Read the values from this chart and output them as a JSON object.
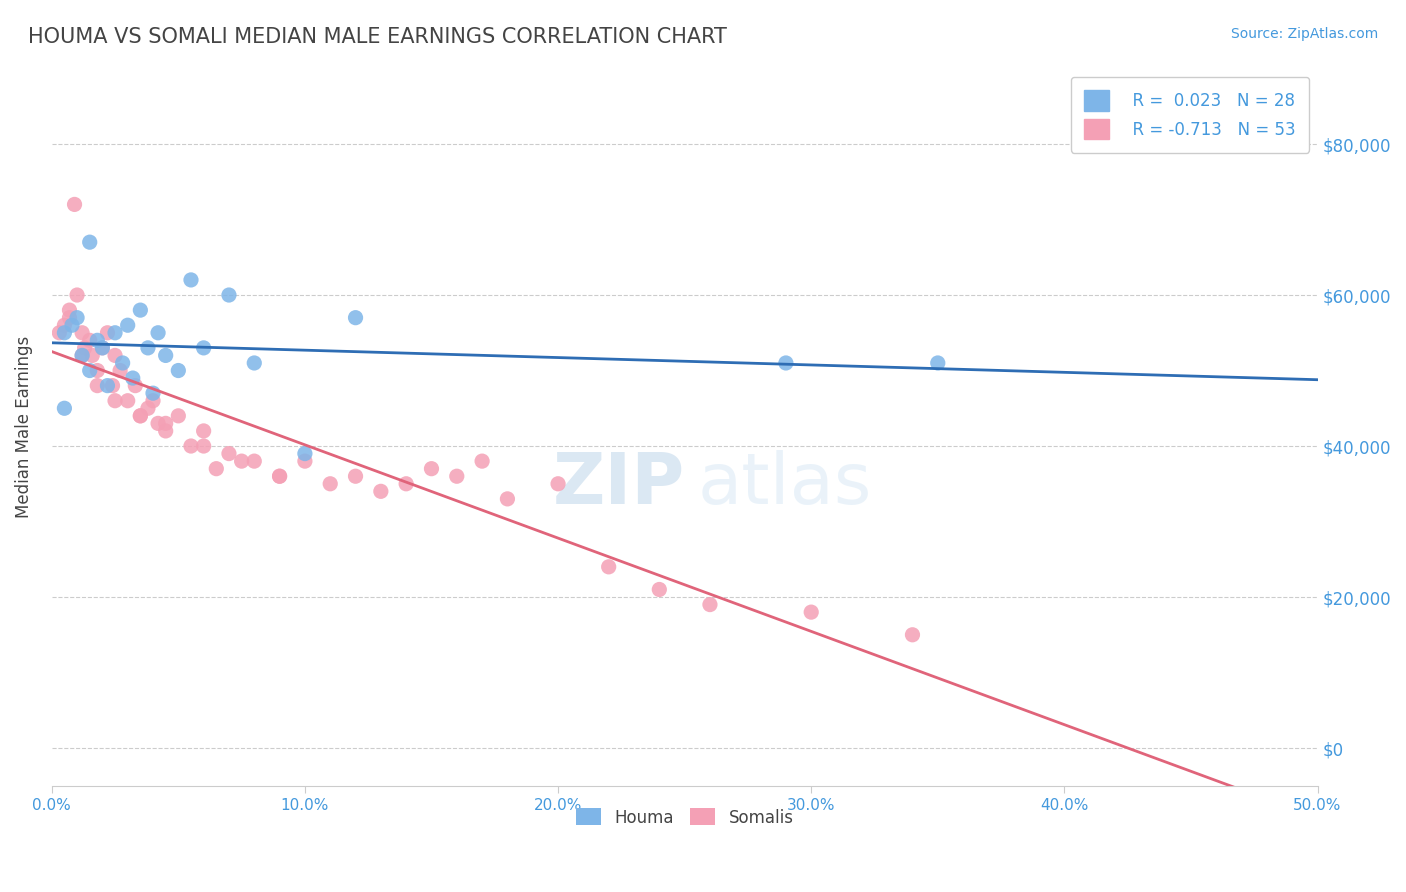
{
  "title": "HOUMA VS SOMALI MEDIAN MALE EARNINGS CORRELATION CHART",
  "source_text": "Source: ZipAtlas.com",
  "ylabel": "Median Male Earnings",
  "xlim": [
    0.0,
    0.5
  ],
  "ylim": [
    -5000,
    90000
  ],
  "yticks": [
    0,
    20000,
    40000,
    60000,
    80000
  ],
  "xticks": [
    0.0,
    0.1,
    0.2,
    0.3,
    0.4,
    0.5
  ],
  "xtick_labels": [
    "0.0%",
    "10.0%",
    "20.0%",
    "30.0%",
    "40.0%",
    "50.0%"
  ],
  "houma_color": "#7EB5E8",
  "somali_color": "#F4A0B5",
  "houma_line_color": "#2E6DB4",
  "somali_line_color": "#E0647A",
  "houma_R": 0.023,
  "houma_N": 28,
  "somali_R": -0.713,
  "somali_N": 53,
  "background_color": "#FFFFFF",
  "grid_color": "#CCCCCC",
  "axis_label_color": "#4499DD",
  "title_color": "#444444",
  "watermark_zip": "ZIP",
  "watermark_atlas": "atlas",
  "houma_x": [
    0.005,
    0.008,
    0.01,
    0.012,
    0.015,
    0.018,
    0.02,
    0.022,
    0.025,
    0.028,
    0.03,
    0.032,
    0.035,
    0.038,
    0.04,
    0.042,
    0.045,
    0.05,
    0.055,
    0.06,
    0.07,
    0.08,
    0.1,
    0.12,
    0.29,
    0.35,
    0.005,
    0.015
  ],
  "houma_y": [
    55000,
    56000,
    57000,
    52000,
    50000,
    54000,
    53000,
    48000,
    55000,
    51000,
    56000,
    49000,
    58000,
    53000,
    47000,
    55000,
    52000,
    50000,
    62000,
    53000,
    60000,
    51000,
    39000,
    57000,
    51000,
    51000,
    45000,
    67000
  ],
  "somali_x": [
    0.003,
    0.005,
    0.007,
    0.009,
    0.01,
    0.012,
    0.013,
    0.015,
    0.016,
    0.018,
    0.02,
    0.022,
    0.024,
    0.025,
    0.027,
    0.03,
    0.033,
    0.035,
    0.038,
    0.04,
    0.042,
    0.045,
    0.05,
    0.055,
    0.06,
    0.065,
    0.07,
    0.08,
    0.09,
    0.1,
    0.11,
    0.12,
    0.13,
    0.14,
    0.15,
    0.16,
    0.17,
    0.18,
    0.2,
    0.22,
    0.24,
    0.26,
    0.007,
    0.012,
    0.018,
    0.025,
    0.035,
    0.045,
    0.06,
    0.075,
    0.09,
    0.3,
    0.34
  ],
  "somali_y": [
    55000,
    56000,
    57000,
    72000,
    60000,
    55000,
    53000,
    54000,
    52000,
    50000,
    53000,
    55000,
    48000,
    52000,
    50000,
    46000,
    48000,
    44000,
    45000,
    46000,
    43000,
    42000,
    44000,
    40000,
    42000,
    37000,
    39000,
    38000,
    36000,
    38000,
    35000,
    36000,
    34000,
    35000,
    37000,
    36000,
    38000,
    33000,
    35000,
    24000,
    21000,
    19000,
    58000,
    52000,
    48000,
    46000,
    44000,
    43000,
    40000,
    38000,
    36000,
    18000,
    15000
  ]
}
